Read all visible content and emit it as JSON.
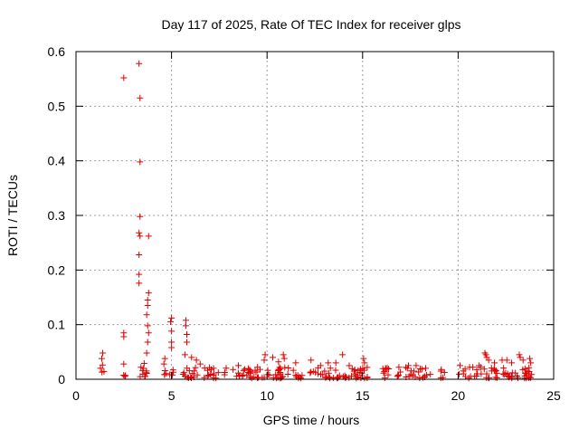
{
  "chart_data": {
    "type": "scatter",
    "title": "Day 117 of 2025, Rate Of TEC Index for receiver glps",
    "xlabel": "GPS time / hours",
    "ylabel": "ROTI / TECUs",
    "xlim": [
      0,
      25
    ],
    "ylim": [
      0,
      0.6
    ],
    "xticks": [
      0,
      5,
      10,
      15,
      20,
      25
    ],
    "yticks": [
      0,
      0.1,
      0.2,
      0.3,
      0.4,
      0.5,
      0.6
    ],
    "grid": true,
    "marker": "+",
    "color": "#e00000",
    "series": [
      {
        "name": "ROTI",
        "points": [
          [
            3.3,
            0.578
          ],
          [
            2.5,
            0.552
          ],
          [
            3.35,
            0.515
          ],
          [
            3.35,
            0.398
          ],
          [
            3.35,
            0.298
          ],
          [
            3.3,
            0.268
          ],
          [
            3.35,
            0.262
          ],
          [
            3.8,
            0.262
          ],
          [
            3.3,
            0.228
          ],
          [
            3.3,
            0.192
          ],
          [
            3.3,
            0.176
          ],
          [
            3.8,
            0.158
          ],
          [
            3.75,
            0.145
          ],
          [
            3.75,
            0.135
          ],
          [
            3.7,
            0.118
          ],
          [
            3.75,
            0.098
          ],
          [
            3.8,
            0.085
          ],
          [
            2.5,
            0.085
          ],
          [
            2.5,
            0.078
          ],
          [
            3.75,
            0.068
          ],
          [
            3.7,
            0.048
          ],
          [
            1.4,
            0.048
          ],
          [
            1.35,
            0.038
          ],
          [
            2.5,
            0.028
          ],
          [
            3.4,
            0.022
          ],
          [
            4.65,
            0.038
          ],
          [
            4.6,
            0.028
          ],
          [
            5.0,
            0.112
          ],
          [
            4.95,
            0.105
          ],
          [
            5.0,
            0.088
          ],
          [
            5.0,
            0.068
          ],
          [
            5.0,
            0.058
          ],
          [
            5.75,
            0.108
          ],
          [
            5.75,
            0.098
          ],
          [
            5.8,
            0.082
          ],
          [
            5.8,
            0.068
          ],
          [
            5.7,
            0.045
          ],
          [
            6.05,
            0.04
          ],
          [
            6.3,
            0.035
          ],
          [
            6.5,
            0.028
          ],
          [
            7.2,
            0.02
          ],
          [
            8.5,
            0.025
          ],
          [
            9.5,
            0.022
          ],
          [
            9.9,
            0.045
          ],
          [
            9.85,
            0.035
          ],
          [
            10.3,
            0.04
          ],
          [
            10.6,
            0.032
          ],
          [
            10.85,
            0.045
          ],
          [
            10.9,
            0.038
          ],
          [
            11.5,
            0.03
          ],
          [
            12.3,
            0.035
          ],
          [
            12.8,
            0.025
          ],
          [
            13.2,
            0.03
          ],
          [
            13.6,
            0.03
          ],
          [
            13.95,
            0.045
          ],
          [
            14.3,
            0.025
          ],
          [
            15.05,
            0.038
          ],
          [
            15.1,
            0.03
          ],
          [
            16.2,
            0.02
          ],
          [
            16.9,
            0.022
          ],
          [
            17.4,
            0.025
          ],
          [
            17.8,
            0.025
          ],
          [
            18.3,
            0.02
          ],
          [
            19.1,
            0.015
          ],
          [
            20.1,
            0.025
          ],
          [
            20.6,
            0.022
          ],
          [
            21.1,
            0.025
          ],
          [
            21.4,
            0.048
          ],
          [
            21.45,
            0.045
          ],
          [
            21.5,
            0.04
          ],
          [
            21.6,
            0.035
          ],
          [
            21.9,
            0.03
          ],
          [
            22.3,
            0.035
          ],
          [
            22.55,
            0.035
          ],
          [
            22.8,
            0.03
          ],
          [
            23.2,
            0.045
          ],
          [
            23.25,
            0.04
          ],
          [
            23.4,
            0.035
          ],
          [
            23.75,
            0.038
          ],
          [
            23.8,
            0.03
          ]
        ]
      }
    ]
  }
}
